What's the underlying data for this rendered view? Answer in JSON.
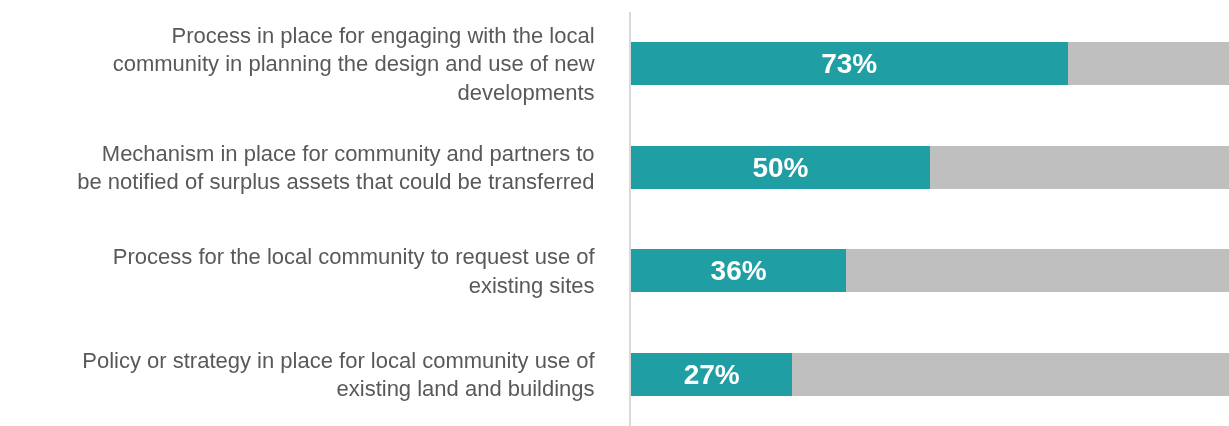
{
  "chart_data": {
    "type": "bar",
    "orientation": "horizontal",
    "stacked": true,
    "categories": [
      "Process in place for engaging with the local community in planning the design and use of new developments",
      "Mechanism in place for community and partners to be notified of surplus assets that could be transferred",
      "Process for the local community to request use of existing sites",
      "Policy or strategy in place for local community use of existing land and buildings"
    ],
    "series": [
      {
        "color": "#1f9ea3",
        "values": [
          73,
          50,
          36,
          27
        ],
        "value_labels": [
          "73%",
          "50%",
          "36%",
          "27%"
        ]
      },
      {
        "color": "#bfbfbf",
        "values": [
          27,
          50,
          64,
          73
        ]
      }
    ],
    "xlim": [
      0,
      100
    ],
    "tick_labels": "y"
  }
}
